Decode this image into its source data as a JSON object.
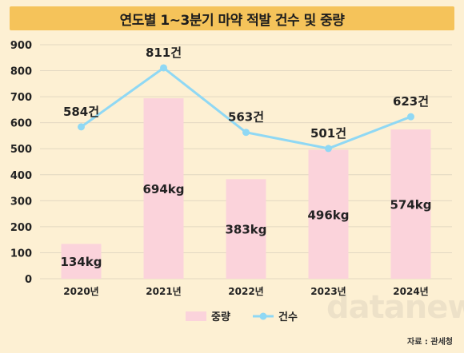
{
  "title": "연도별 1~3분기 마약 적발 건수 및 중량",
  "source": "자료 : 관세청",
  "watermark": "datanews",
  "colors": {
    "title_bg": "#f5c35a",
    "background": "#fdf0d3",
    "bar": "#fbd3db",
    "line": "#8fd8f4",
    "grid": "#e2d8c2"
  },
  "chart_data": {
    "type": "bar+line",
    "categories": [
      "2020년",
      "2021년",
      "2022년",
      "2023년",
      "2024년"
    ],
    "series": [
      {
        "name": "중량",
        "type": "bar",
        "values": [
          134,
          694,
          383,
          496,
          574
        ],
        "labels": [
          "134kg",
          "694kg",
          "383kg",
          "496kg",
          "574kg"
        ]
      },
      {
        "name": "건수",
        "type": "line",
        "values": [
          584,
          811,
          563,
          501,
          623
        ],
        "labels": [
          "584건",
          "811건",
          "563건",
          "501건",
          "623건"
        ]
      }
    ],
    "yticks": [
      "0",
      "100",
      "200",
      "300",
      "400",
      "500",
      "600",
      "700",
      "800",
      "900"
    ],
    "ylim": [
      0,
      900
    ],
    "grid": true,
    "legend": "bottom"
  }
}
